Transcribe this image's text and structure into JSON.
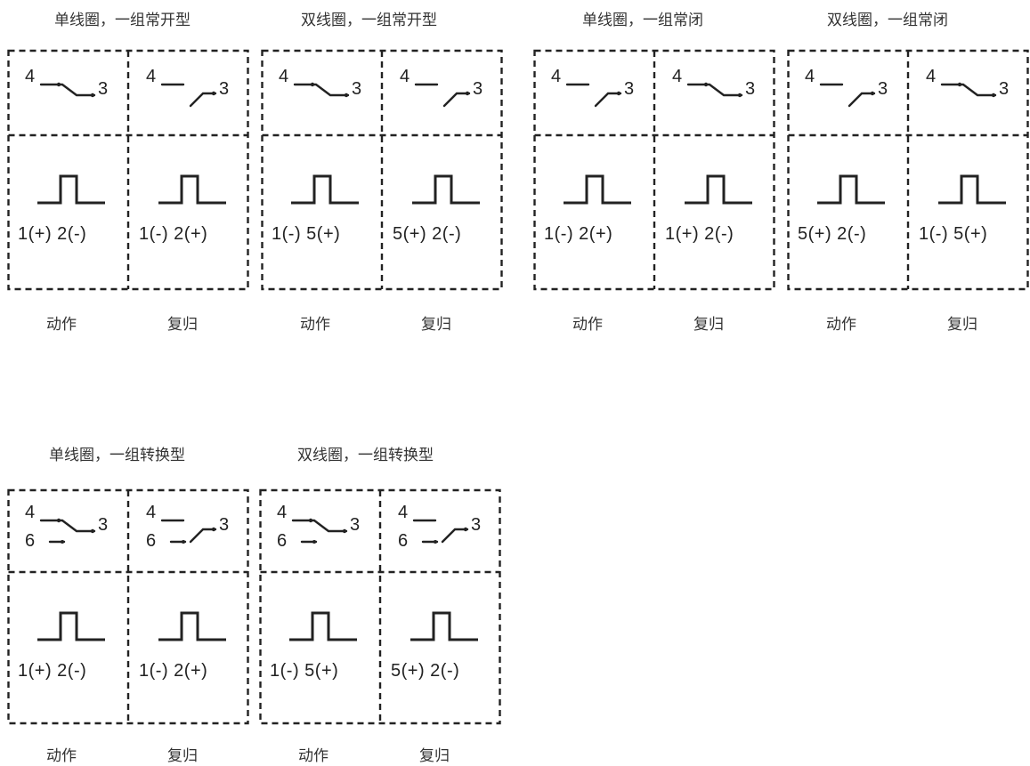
{
  "groups": [
    {
      "title": "单线圈，一组常开型",
      "cells": [
        {
          "label": "动作",
          "contact": "closed",
          "changeover": false,
          "polarity": "1(+) 2(-)"
        },
        {
          "label": "复归",
          "contact": "open",
          "changeover": false,
          "polarity": "1(-) 2(+)"
        }
      ]
    },
    {
      "title": "双线圈，一组常开型",
      "cells": [
        {
          "label": "动作",
          "contact": "closed",
          "changeover": false,
          "polarity": "1(-) 5(+)"
        },
        {
          "label": "复归",
          "contact": "open",
          "changeover": false,
          "polarity": "5(+) 2(-)"
        }
      ]
    },
    {
      "title": "单线圈，一组常闭",
      "cells": [
        {
          "label": "动作",
          "contact": "open",
          "changeover": false,
          "polarity": "1(-) 2(+)"
        },
        {
          "label": "复归",
          "contact": "closed",
          "changeover": false,
          "polarity": "1(+) 2(-)"
        }
      ]
    },
    {
      "title": "双线圈，一组常闭",
      "cells": [
        {
          "label": "动作",
          "contact": "open",
          "changeover": false,
          "polarity": "5(+) 2(-)"
        },
        {
          "label": "复归",
          "contact": "closed",
          "changeover": false,
          "polarity": "1(-) 5(+)"
        }
      ]
    },
    {
      "title": "单线圈，一组转换型",
      "cells": [
        {
          "label": "动作",
          "contact": "closed",
          "changeover": true,
          "polarity": "1(+) 2(-)"
        },
        {
          "label": "复归",
          "contact": "open",
          "changeover": true,
          "polarity": "1(-) 2(+)"
        }
      ]
    },
    {
      "title": "双线圈，一组转换型",
      "cells": [
        {
          "label": "动作",
          "contact": "closed",
          "changeover": true,
          "polarity": "1(-) 5(+)"
        },
        {
          "label": "复归",
          "contact": "open",
          "changeover": true,
          "polarity": "5(+) 2(-)"
        }
      ]
    }
  ],
  "pins": {
    "top": "4",
    "right": "3",
    "bottom": "6"
  }
}
